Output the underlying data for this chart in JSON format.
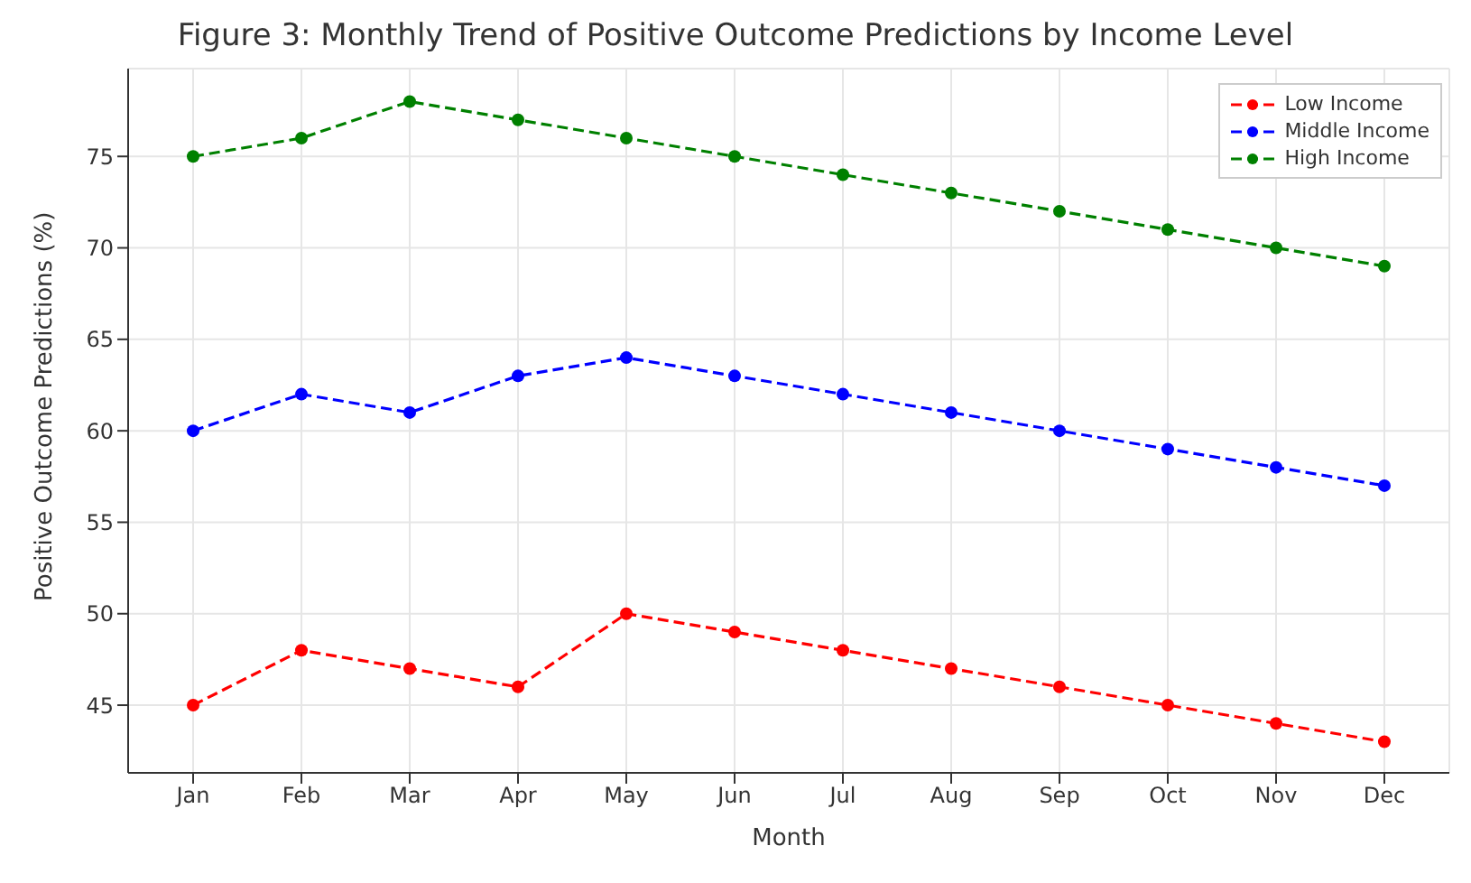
{
  "chart_data": {
    "type": "line",
    "title": "Figure 3: Monthly Trend of Positive Outcome Predictions by Income Level",
    "xlabel": "Month",
    "ylabel": "Positive Outcome Predictions (%)",
    "categories": [
      "Jan",
      "Feb",
      "Mar",
      "Apr",
      "May",
      "Jun",
      "Jul",
      "Aug",
      "Sep",
      "Oct",
      "Nov",
      "Dec"
    ],
    "series": [
      {
        "name": "Low Income",
        "color": "#ff0000",
        "values": [
          45,
          48,
          47,
          46,
          50,
          49,
          48,
          47,
          46,
          45,
          44,
          43
        ]
      },
      {
        "name": "Middle Income",
        "color": "#0000ff",
        "values": [
          60,
          62,
          61,
          63,
          64,
          63,
          62,
          61,
          60,
          59,
          58,
          57
        ]
      },
      {
        "name": "High Income",
        "color": "#008000",
        "values": [
          75,
          76,
          78,
          77,
          76,
          75,
          74,
          73,
          72,
          71,
          70,
          69
        ]
      }
    ],
    "ylim": [
      41.3,
      79.8
    ],
    "yticks": [
      45,
      50,
      55,
      60,
      65,
      70,
      75
    ],
    "grid": true,
    "legend": "top right",
    "marker": "circle",
    "line_style": "dashed"
  }
}
